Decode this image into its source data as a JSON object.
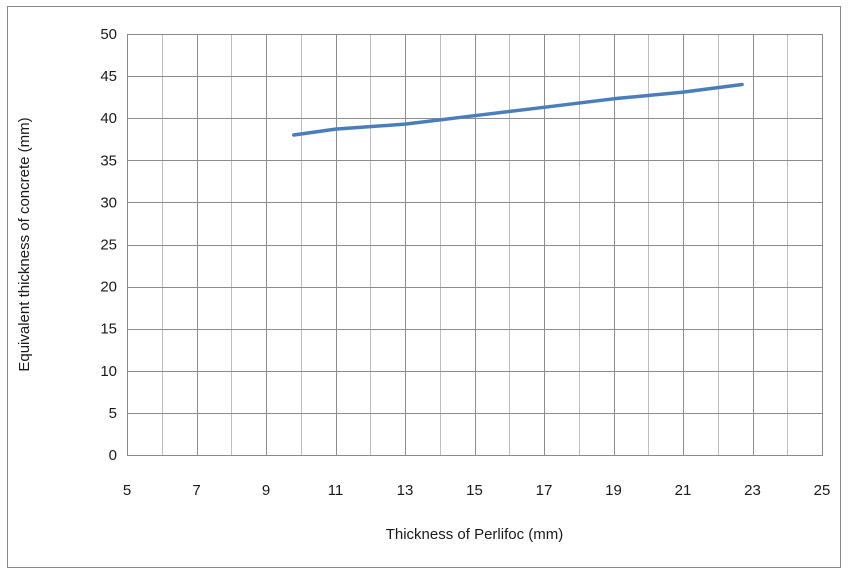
{
  "chart_data": {
    "type": "line",
    "title": "",
    "xlabel": "Thickness of Perlifoc (mm)",
    "ylabel": "Equivalent thickness of concrete (mm)",
    "xlim": [
      5,
      25
    ],
    "ylim": [
      0,
      50
    ],
    "x_ticks": [
      5,
      7,
      9,
      11,
      13,
      15,
      17,
      19,
      21,
      23,
      25
    ],
    "y_ticks": [
      0,
      5,
      10,
      15,
      20,
      25,
      30,
      35,
      40,
      45,
      50
    ],
    "grid": true,
    "legend": "none",
    "series": [
      {
        "x": [
          9.8,
          11,
          13,
          15,
          17,
          19,
          21,
          22.7
        ],
        "y": [
          38.0,
          38.7,
          39.3,
          40.3,
          41.3,
          42.3,
          43.1,
          44.0
        ],
        "color": "#4a7ebb"
      }
    ]
  }
}
